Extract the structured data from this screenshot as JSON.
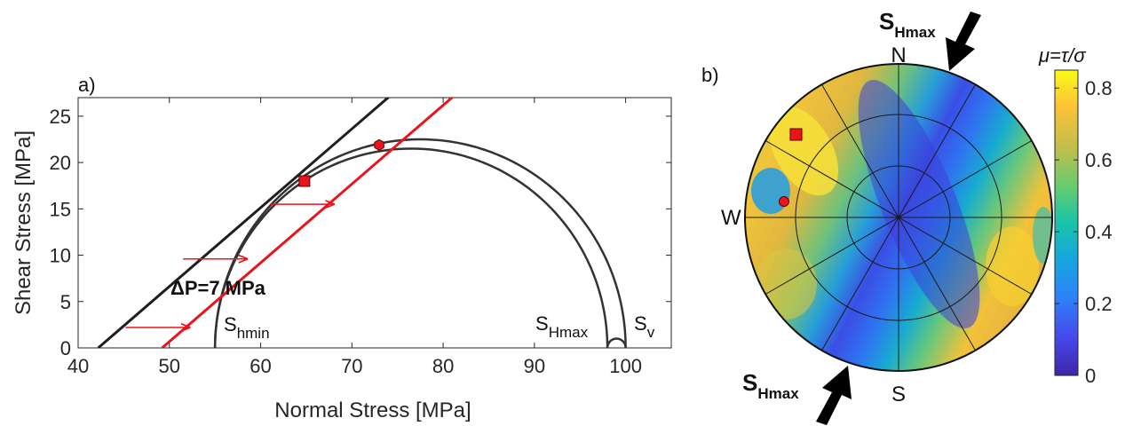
{
  "chart_data": [
    {
      "type": "line",
      "panel_label": "a)",
      "xlabel": "Normal Stress [MPa]",
      "ylabel": "Shear Stress  [MPa]",
      "xlim": [
        40,
        105
      ],
      "ylim": [
        0,
        27
      ],
      "xticks": [
        "40",
        "50",
        "60",
        "70",
        "80",
        "90",
        "100"
      ],
      "yticks": [
        "0",
        "5",
        "10",
        "15",
        "20",
        "25"
      ],
      "failure_envelopes": [
        {
          "color": "#1f1f1f",
          "x_intercept": 42.2,
          "slope": 0.85
        },
        {
          "color": "#e8141e",
          "x_intercept": 49.2,
          "slope": 0.85
        }
      ],
      "mohr_circles": [
        {
          "from": 55,
          "to": 100,
          "color": "#333333"
        },
        {
          "from": 55,
          "to": 98,
          "color": "#333333"
        },
        {
          "from": 98,
          "to": 100,
          "color": "#333333"
        }
      ],
      "arrows": [
        {
          "x_from": 45.2,
          "x_to": 52.2,
          "y": 2.2
        },
        {
          "x_from": 51.5,
          "x_to": 58.5,
          "y": 9.6
        },
        {
          "x_from": 61,
          "x_to": 68,
          "y": 15.5
        }
      ],
      "markers": [
        {
          "shape": "square",
          "x": 64.8,
          "y": 18.0,
          "color": "#e8141e"
        },
        {
          "shape": "hexagon",
          "x": 73.0,
          "y": 21.9,
          "color": "#e8141e"
        }
      ],
      "annotations": {
        "delta_p": "ΔP=7 MPa",
        "shmin_main": "S",
        "shmin_sub": "hmin",
        "sHmax_main": "S",
        "sHmax_sub": "Hmax",
        "sv_main": "S",
        "sv_sub": "v"
      }
    },
    {
      "type": "heatmap",
      "panel_label": "b)",
      "projection": "stereonet",
      "compass": {
        "north": "N",
        "south": "S",
        "west": "W"
      },
      "stress_arrows": [
        {
          "main": "S",
          "sub": "Hmax",
          "position": "top-right"
        },
        {
          "main": "S",
          "sub": "Hmax",
          "position": "bottom-left"
        }
      ],
      "markers": [
        {
          "shape": "square",
          "color": "#e8141e"
        },
        {
          "shape": "circle",
          "color": "#e8141e"
        }
      ],
      "colorbar": {
        "label": "μ=τ/σ",
        "ticks": [
          "0",
          "0.2",
          "0.4",
          "0.6",
          "0.8"
        ],
        "range": [
          0,
          0.85
        ],
        "colormap": "parula"
      }
    }
  ]
}
